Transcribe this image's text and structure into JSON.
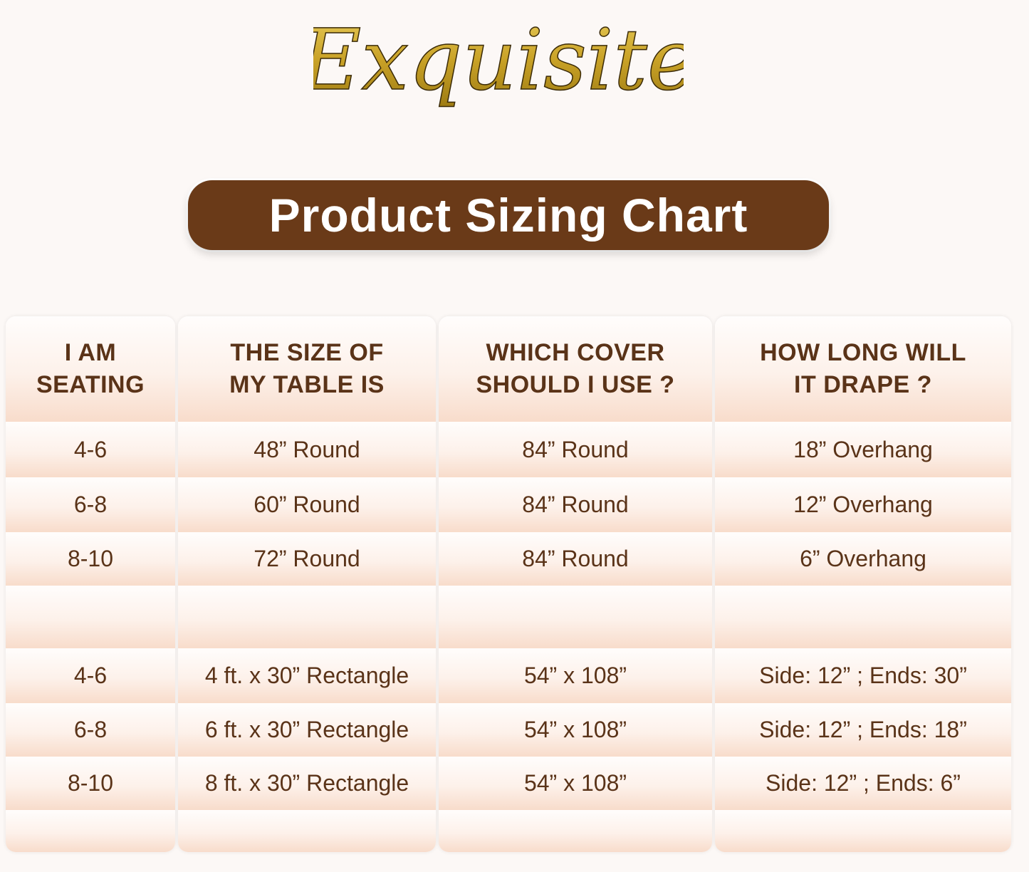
{
  "brand": {
    "logo_text": "Exquisite",
    "logo_color": "#c9a227"
  },
  "title": "Product Sizing Chart",
  "colors": {
    "title_bg": "#6a3a18",
    "text": "#5a3318",
    "cell_tint": "#f8dccb"
  },
  "table": {
    "headers": [
      [
        "I AM",
        "SEATING"
      ],
      [
        "THE SIZE OF",
        "MY TABLE IS"
      ],
      [
        "WHICH COVER",
        "SHOULD I USE ?"
      ],
      [
        "HOW LONG WILL",
        "IT DRAPE ?"
      ]
    ],
    "round_rows": [
      [
        "4-6",
        "48” Round",
        "84” Round",
        "18” Overhang"
      ],
      [
        "6-8",
        "60” Round",
        "84” Round",
        "12” Overhang"
      ],
      [
        "8-10",
        "72” Round",
        "84” Round",
        "6” Overhang"
      ]
    ],
    "rect_rows": [
      [
        "4-6",
        "4 ft. x 30” Rectangle",
        "54” x 108”",
        "Side: 12” ; Ends: 30”"
      ],
      [
        "6-8",
        "6 ft. x 30” Rectangle",
        "54” x 108”",
        "Side: 12” ; Ends: 18”"
      ],
      [
        "8-10",
        "8 ft. x 30” Rectangle",
        "54” x 108”",
        "Side: 12” ; Ends: 6”"
      ]
    ]
  }
}
